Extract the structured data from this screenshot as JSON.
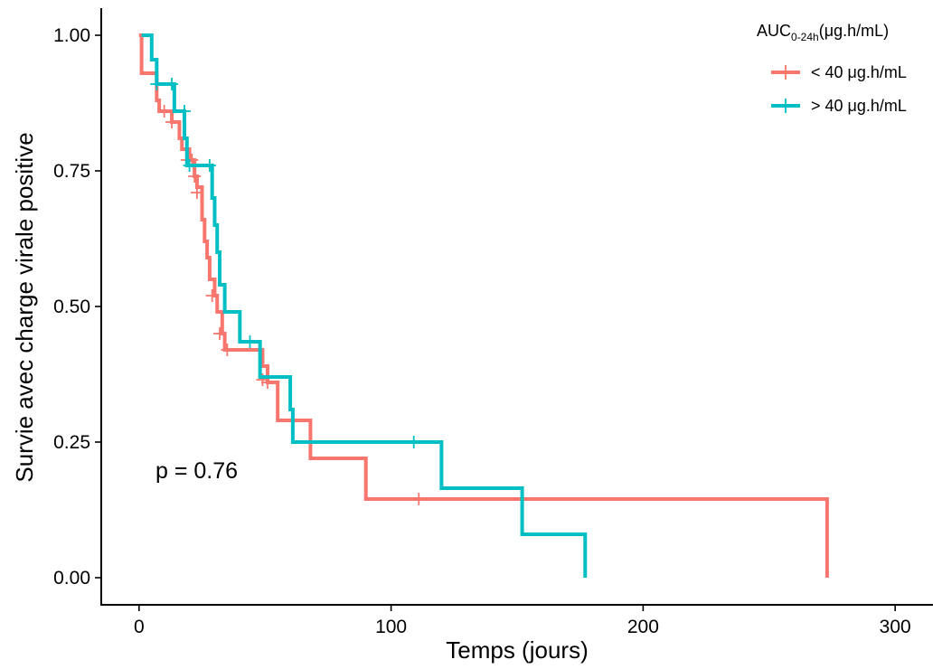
{
  "chart_data": {
    "type": "line",
    "subtype": "kaplan-meier-step",
    "title": "",
    "xlabel": "Temps (jours)",
    "ylabel": "Survie avec charge virale positive",
    "xlim": [
      -15,
      315
    ],
    "ylim": [
      -0.05,
      1.05
    ],
    "xticks": [
      0,
      100,
      200,
      300
    ],
    "xtick_labels": [
      "0",
      "100",
      "200",
      "300"
    ],
    "yticks": [
      0,
      0.25,
      0.5,
      0.75,
      1.0
    ],
    "ytick_labels": [
      "0.00",
      "0.25",
      "0.50",
      "0.75",
      "1.00"
    ],
    "grid": false,
    "legend_placement": "top-right",
    "legend": {
      "title_main": "AUC",
      "title_sub": "0-24h",
      "title_rest": "(μg.h/mL)"
    },
    "annotation": "p = 0.76",
    "annotation_at": [
      0,
      0.19
    ],
    "series": [
      {
        "name": "< 40 μg.h/mL",
        "color": "#F8766D",
        "steps": [
          [
            0,
            1.0
          ],
          [
            1,
            0.93
          ],
          [
            7,
            0.88
          ],
          [
            8,
            0.86
          ],
          [
            13,
            0.84
          ],
          [
            16,
            0.81
          ],
          [
            17,
            0.79
          ],
          [
            20,
            0.77
          ],
          [
            22,
            0.74
          ],
          [
            23,
            0.72
          ],
          [
            25,
            0.66
          ],
          [
            26,
            0.62
          ],
          [
            27,
            0.59
          ],
          [
            28,
            0.55
          ],
          [
            30,
            0.52
          ],
          [
            31,
            0.49
          ],
          [
            33,
            0.45
          ],
          [
            34,
            0.42
          ],
          [
            49,
            0.39
          ],
          [
            51,
            0.36
          ],
          [
            55,
            0.29
          ],
          [
            68,
            0.22
          ],
          [
            90,
            0.145
          ],
          [
            273,
            0.145
          ],
          [
            273,
            0.0
          ]
        ],
        "censored": [
          [
            10,
            0.86
          ],
          [
            13,
            0.84
          ],
          [
            19,
            0.77
          ],
          [
            21,
            0.77
          ],
          [
            22,
            0.74
          ],
          [
            23,
            0.71
          ],
          [
            29,
            0.52
          ],
          [
            32,
            0.45
          ],
          [
            35,
            0.42
          ],
          [
            49,
            0.365
          ],
          [
            51,
            0.36
          ],
          [
            111,
            0.145
          ]
        ]
      },
      {
        "name": "> 40 μg.h/mL",
        "color": "#00BFC4",
        "steps": [
          [
            1,
            1.0
          ],
          [
            5,
            0.955
          ],
          [
            7,
            0.91
          ],
          [
            14,
            0.86
          ],
          [
            18,
            0.81
          ],
          [
            19,
            0.76
          ],
          [
            29,
            0.7
          ],
          [
            30,
            0.65
          ],
          [
            31,
            0.6
          ],
          [
            32,
            0.54
          ],
          [
            34,
            0.49
          ],
          [
            40,
            0.435
          ],
          [
            48,
            0.37
          ],
          [
            60,
            0.31
          ],
          [
            61,
            0.25
          ],
          [
            120,
            0.165
          ],
          [
            152,
            0.08
          ],
          [
            177,
            0.08
          ],
          [
            177,
            0.0
          ]
        ],
        "censored": [
          [
            7,
            0.91
          ],
          [
            13,
            0.91
          ],
          [
            18,
            0.86
          ],
          [
            20,
            0.76
          ],
          [
            28,
            0.76
          ],
          [
            44,
            0.435
          ],
          [
            109,
            0.25
          ]
        ]
      }
    ]
  }
}
